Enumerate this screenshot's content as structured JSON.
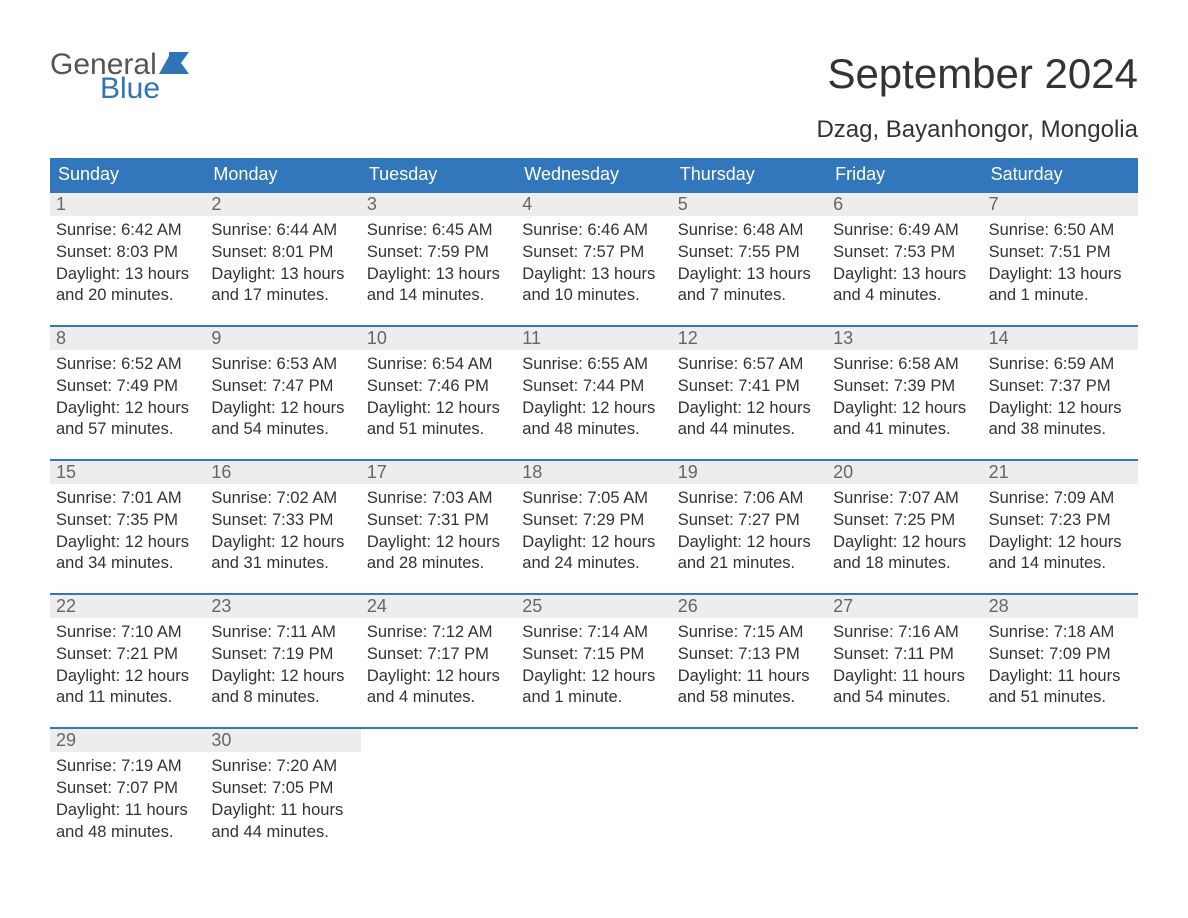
{
  "logo": {
    "top": "General",
    "bottom": "Blue"
  },
  "title": "September 2024",
  "subtitle": "Dzag, Bayanhongor, Mongolia",
  "colors": {
    "header_bg": "#3277bb",
    "header_fg": "#ffffff",
    "daynum_bg": "#ededed",
    "daynum_fg": "#666666",
    "logo_gray": "#555555",
    "logo_blue": "#2f75b5",
    "text": "#333333",
    "bg": "#ffffff"
  },
  "typography": {
    "title_size": 42,
    "subtitle_size": 24,
    "dow_size": 18,
    "daynum_size": 18,
    "body_size": 16.5
  },
  "days_of_week": [
    "Sunday",
    "Monday",
    "Tuesday",
    "Wednesday",
    "Thursday",
    "Friday",
    "Saturday"
  ],
  "weeks": [
    [
      {
        "n": "1",
        "sunrise": "6:42 AM",
        "sunset": "8:03 PM",
        "dl1": "Daylight: 13 hours",
        "dl2": "and 20 minutes."
      },
      {
        "n": "2",
        "sunrise": "6:44 AM",
        "sunset": "8:01 PM",
        "dl1": "Daylight: 13 hours",
        "dl2": "and 17 minutes."
      },
      {
        "n": "3",
        "sunrise": "6:45 AM",
        "sunset": "7:59 PM",
        "dl1": "Daylight: 13 hours",
        "dl2": "and 14 minutes."
      },
      {
        "n": "4",
        "sunrise": "6:46 AM",
        "sunset": "7:57 PM",
        "dl1": "Daylight: 13 hours",
        "dl2": "and 10 minutes."
      },
      {
        "n": "5",
        "sunrise": "6:48 AM",
        "sunset": "7:55 PM",
        "dl1": "Daylight: 13 hours",
        "dl2": "and 7 minutes."
      },
      {
        "n": "6",
        "sunrise": "6:49 AM",
        "sunset": "7:53 PM",
        "dl1": "Daylight: 13 hours",
        "dl2": "and 4 minutes."
      },
      {
        "n": "7",
        "sunrise": "6:50 AM",
        "sunset": "7:51 PM",
        "dl1": "Daylight: 13 hours",
        "dl2": "and 1 minute."
      }
    ],
    [
      {
        "n": "8",
        "sunrise": "6:52 AM",
        "sunset": "7:49 PM",
        "dl1": "Daylight: 12 hours",
        "dl2": "and 57 minutes."
      },
      {
        "n": "9",
        "sunrise": "6:53 AM",
        "sunset": "7:47 PM",
        "dl1": "Daylight: 12 hours",
        "dl2": "and 54 minutes."
      },
      {
        "n": "10",
        "sunrise": "6:54 AM",
        "sunset": "7:46 PM",
        "dl1": "Daylight: 12 hours",
        "dl2": "and 51 minutes."
      },
      {
        "n": "11",
        "sunrise": "6:55 AM",
        "sunset": "7:44 PM",
        "dl1": "Daylight: 12 hours",
        "dl2": "and 48 minutes."
      },
      {
        "n": "12",
        "sunrise": "6:57 AM",
        "sunset": "7:41 PM",
        "dl1": "Daylight: 12 hours",
        "dl2": "and 44 minutes."
      },
      {
        "n": "13",
        "sunrise": "6:58 AM",
        "sunset": "7:39 PM",
        "dl1": "Daylight: 12 hours",
        "dl2": "and 41 minutes."
      },
      {
        "n": "14",
        "sunrise": "6:59 AM",
        "sunset": "7:37 PM",
        "dl1": "Daylight: 12 hours",
        "dl2": "and 38 minutes."
      }
    ],
    [
      {
        "n": "15",
        "sunrise": "7:01 AM",
        "sunset": "7:35 PM",
        "dl1": "Daylight: 12 hours",
        "dl2": "and 34 minutes."
      },
      {
        "n": "16",
        "sunrise": "7:02 AM",
        "sunset": "7:33 PM",
        "dl1": "Daylight: 12 hours",
        "dl2": "and 31 minutes."
      },
      {
        "n": "17",
        "sunrise": "7:03 AM",
        "sunset": "7:31 PM",
        "dl1": "Daylight: 12 hours",
        "dl2": "and 28 minutes."
      },
      {
        "n": "18",
        "sunrise": "7:05 AM",
        "sunset": "7:29 PM",
        "dl1": "Daylight: 12 hours",
        "dl2": "and 24 minutes."
      },
      {
        "n": "19",
        "sunrise": "7:06 AM",
        "sunset": "7:27 PM",
        "dl1": "Daylight: 12 hours",
        "dl2": "and 21 minutes."
      },
      {
        "n": "20",
        "sunrise": "7:07 AM",
        "sunset": "7:25 PM",
        "dl1": "Daylight: 12 hours",
        "dl2": "and 18 minutes."
      },
      {
        "n": "21",
        "sunrise": "7:09 AM",
        "sunset": "7:23 PM",
        "dl1": "Daylight: 12 hours",
        "dl2": "and 14 minutes."
      }
    ],
    [
      {
        "n": "22",
        "sunrise": "7:10 AM",
        "sunset": "7:21 PM",
        "dl1": "Daylight: 12 hours",
        "dl2": "and 11 minutes."
      },
      {
        "n": "23",
        "sunrise": "7:11 AM",
        "sunset": "7:19 PM",
        "dl1": "Daylight: 12 hours",
        "dl2": "and 8 minutes."
      },
      {
        "n": "24",
        "sunrise": "7:12 AM",
        "sunset": "7:17 PM",
        "dl1": "Daylight: 12 hours",
        "dl2": "and 4 minutes."
      },
      {
        "n": "25",
        "sunrise": "7:14 AM",
        "sunset": "7:15 PM",
        "dl1": "Daylight: 12 hours",
        "dl2": "and 1 minute."
      },
      {
        "n": "26",
        "sunrise": "7:15 AM",
        "sunset": "7:13 PM",
        "dl1": "Daylight: 11 hours",
        "dl2": "and 58 minutes."
      },
      {
        "n": "27",
        "sunrise": "7:16 AM",
        "sunset": "7:11 PM",
        "dl1": "Daylight: 11 hours",
        "dl2": "and 54 minutes."
      },
      {
        "n": "28",
        "sunrise": "7:18 AM",
        "sunset": "7:09 PM",
        "dl1": "Daylight: 11 hours",
        "dl2": "and 51 minutes."
      }
    ],
    [
      {
        "n": "29",
        "sunrise": "7:19 AM",
        "sunset": "7:07 PM",
        "dl1": "Daylight: 11 hours",
        "dl2": "and 48 minutes."
      },
      {
        "n": "30",
        "sunrise": "7:20 AM",
        "sunset": "7:05 PM",
        "dl1": "Daylight: 11 hours",
        "dl2": "and 44 minutes."
      },
      null,
      null,
      null,
      null,
      null
    ]
  ],
  "labels": {
    "sunrise": "Sunrise: ",
    "sunset": "Sunset: "
  }
}
